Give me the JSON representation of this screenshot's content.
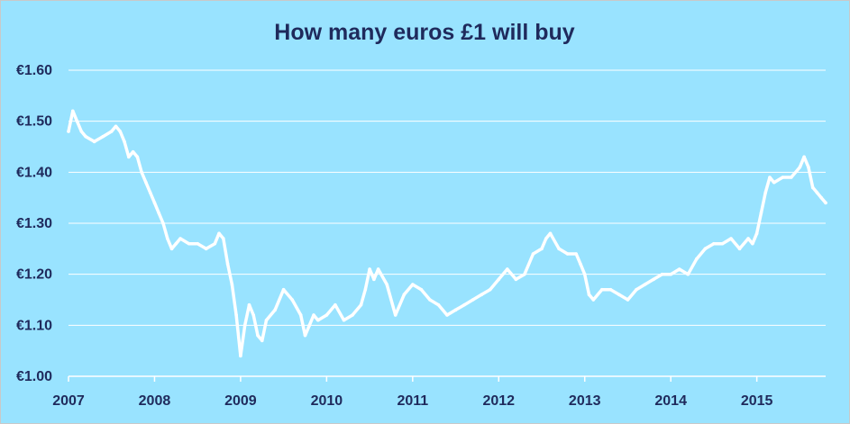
{
  "chart_data": {
    "type": "line",
    "title": "How many euros £1 will buy",
    "xlabel": "",
    "ylabel": "",
    "xlim": [
      2007.0,
      2015.8
    ],
    "ylim": [
      1.0,
      1.6
    ],
    "grid": true,
    "legend": "none",
    "x_ticks": [
      "2007",
      "2008",
      "2009",
      "2010",
      "2011",
      "2012",
      "2013",
      "2014",
      "2015"
    ],
    "y_ticks": [
      "€1.00",
      "€1.10",
      "€1.20",
      "€1.30",
      "€1.40",
      "€1.50",
      "€1.60"
    ],
    "series": [
      {
        "color": "#ffffff",
        "x": [
          2007.0,
          2007.05,
          2007.1,
          2007.15,
          2007.2,
          2007.3,
          2007.4,
          2007.5,
          2007.55,
          2007.6,
          2007.65,
          2007.7,
          2007.75,
          2007.8,
          2007.85,
          2007.9,
          2007.95,
          2008.0,
          2008.05,
          2008.1,
          2008.15,
          2008.2,
          2008.25,
          2008.3,
          2008.4,
          2008.5,
          2008.6,
          2008.7,
          2008.75,
          2008.8,
          2008.85,
          2008.9,
          2008.95,
          2009.0,
          2009.05,
          2009.1,
          2009.15,
          2009.2,
          2009.25,
          2009.3,
          2009.4,
          2009.5,
          2009.6,
          2009.7,
          2009.75,
          2009.8,
          2009.85,
          2009.9,
          2010.0,
          2010.1,
          2010.2,
          2010.3,
          2010.4,
          2010.45,
          2010.5,
          2010.55,
          2010.6,
          2010.7,
          2010.8,
          2010.9,
          2011.0,
          2011.1,
          2011.2,
          2011.3,
          2011.4,
          2011.5,
          2011.6,
          2011.7,
          2011.8,
          2011.9,
          2012.0,
          2012.1,
          2012.2,
          2012.3,
          2012.4,
          2012.5,
          2012.55,
          2012.6,
          2012.7,
          2012.8,
          2012.9,
          2012.95,
          2013.0,
          2013.05,
          2013.1,
          2013.2,
          2013.3,
          2013.4,
          2013.5,
          2013.6,
          2013.7,
          2013.8,
          2013.9,
          2014.0,
          2014.1,
          2014.2,
          2014.3,
          2014.4,
          2014.5,
          2014.6,
          2014.7,
          2014.8,
          2014.9,
          2014.95,
          2015.0,
          2015.05,
          2015.1,
          2015.15,
          2015.2,
          2015.3,
          2015.4,
          2015.5,
          2015.55,
          2015.6,
          2015.65,
          2015.7,
          2015.75,
          2015.8
        ],
        "values": [
          1.48,
          1.52,
          1.5,
          1.48,
          1.47,
          1.46,
          1.47,
          1.48,
          1.49,
          1.48,
          1.46,
          1.43,
          1.44,
          1.43,
          1.4,
          1.38,
          1.36,
          1.34,
          1.32,
          1.3,
          1.27,
          1.25,
          1.26,
          1.27,
          1.26,
          1.26,
          1.25,
          1.26,
          1.28,
          1.27,
          1.22,
          1.18,
          1.12,
          1.04,
          1.1,
          1.14,
          1.12,
          1.08,
          1.07,
          1.11,
          1.13,
          1.17,
          1.15,
          1.12,
          1.08,
          1.1,
          1.12,
          1.11,
          1.12,
          1.14,
          1.11,
          1.12,
          1.14,
          1.17,
          1.21,
          1.19,
          1.21,
          1.18,
          1.12,
          1.16,
          1.18,
          1.17,
          1.15,
          1.14,
          1.12,
          1.13,
          1.14,
          1.15,
          1.16,
          1.17,
          1.19,
          1.21,
          1.19,
          1.2,
          1.24,
          1.25,
          1.27,
          1.28,
          1.25,
          1.24,
          1.24,
          1.22,
          1.2,
          1.16,
          1.15,
          1.17,
          1.17,
          1.16,
          1.15,
          1.17,
          1.18,
          1.19,
          1.2,
          1.2,
          1.21,
          1.2,
          1.23,
          1.25,
          1.26,
          1.26,
          1.27,
          1.25,
          1.27,
          1.26,
          1.28,
          1.32,
          1.36,
          1.39,
          1.38,
          1.39,
          1.39,
          1.41,
          1.43,
          1.41,
          1.37,
          1.36,
          1.35,
          1.34
        ]
      }
    ]
  }
}
